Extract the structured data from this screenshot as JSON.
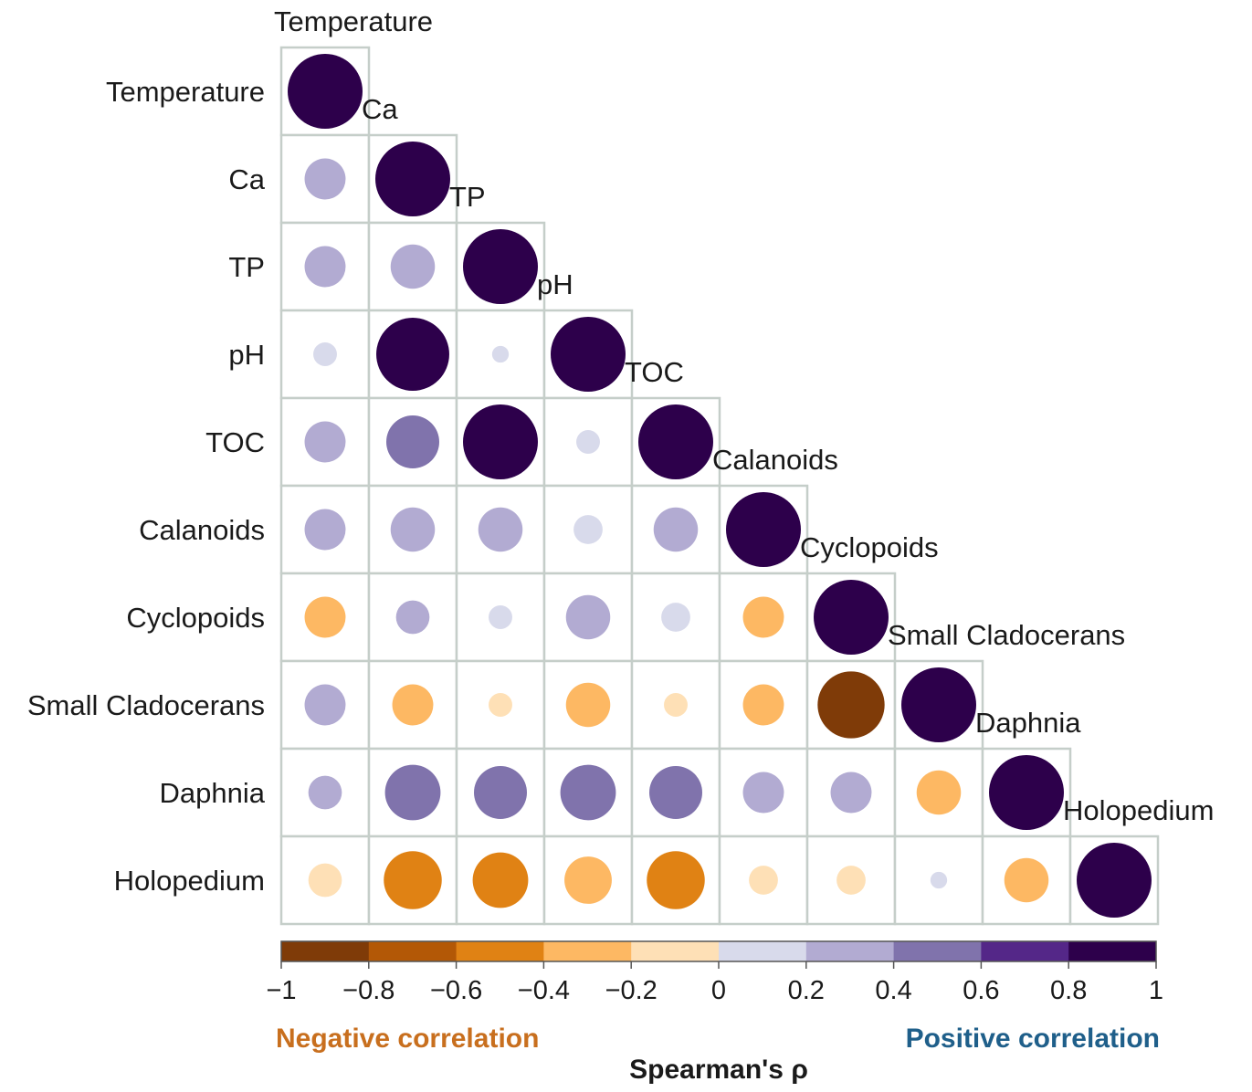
{
  "chart_data": {
    "type": "heatmap",
    "subtype": "correlogram-lower-triangle",
    "variables": [
      "Temperature",
      "Ca",
      "TP",
      "pH",
      "TOC",
      "Calanoids",
      "Cyclopoids",
      "Small Cladocerans",
      "Daphnia",
      "Holopedium"
    ],
    "matrix_lower": [
      [
        1.0
      ],
      [
        0.3,
        1.0
      ],
      [
        0.3,
        0.35,
        1.0
      ],
      [
        0.1,
        0.95,
        0.05,
        1.0
      ],
      [
        0.3,
        0.5,
        1.0,
        0.1,
        1.0
      ],
      [
        0.3,
        0.35,
        0.35,
        0.15,
        0.35,
        1.0
      ],
      [
        -0.3,
        0.2,
        0.1,
        0.35,
        0.15,
        -0.3,
        1.0
      ],
      [
        0.3,
        -0.3,
        -0.1,
        -0.35,
        -0.1,
        -0.3,
        -0.8,
        1.0
      ],
      [
        0.2,
        0.55,
        0.5,
        0.55,
        0.5,
        0.3,
        0.3,
        -0.35,
        1.0
      ],
      [
        -0.2,
        -0.6,
        -0.55,
        -0.4,
        -0.6,
        -0.15,
        -0.15,
        0.05,
        -0.35,
        1.0
      ]
    ],
    "colorbar": {
      "min": -1,
      "max": 1,
      "ticks": [
        "−1",
        "−0.8",
        "−0.6",
        "−0.4",
        "−0.2",
        "0",
        "0.2",
        "0.4",
        "0.6",
        "0.8",
        "1"
      ],
      "bin_colors": [
        "#7f3b08",
        "#b35806",
        "#e08214",
        "#fdb863",
        "#fee0b6",
        "#d8daeb",
        "#b2abd2",
        "#8073ac",
        "#542788",
        "#2d004b"
      ],
      "title": "Spearman's ρ",
      "negative_label": "Negative correlation",
      "positive_label": "Positive correlation",
      "negative_color": "#c86f1e",
      "positive_color": "#1f5f8a"
    }
  }
}
